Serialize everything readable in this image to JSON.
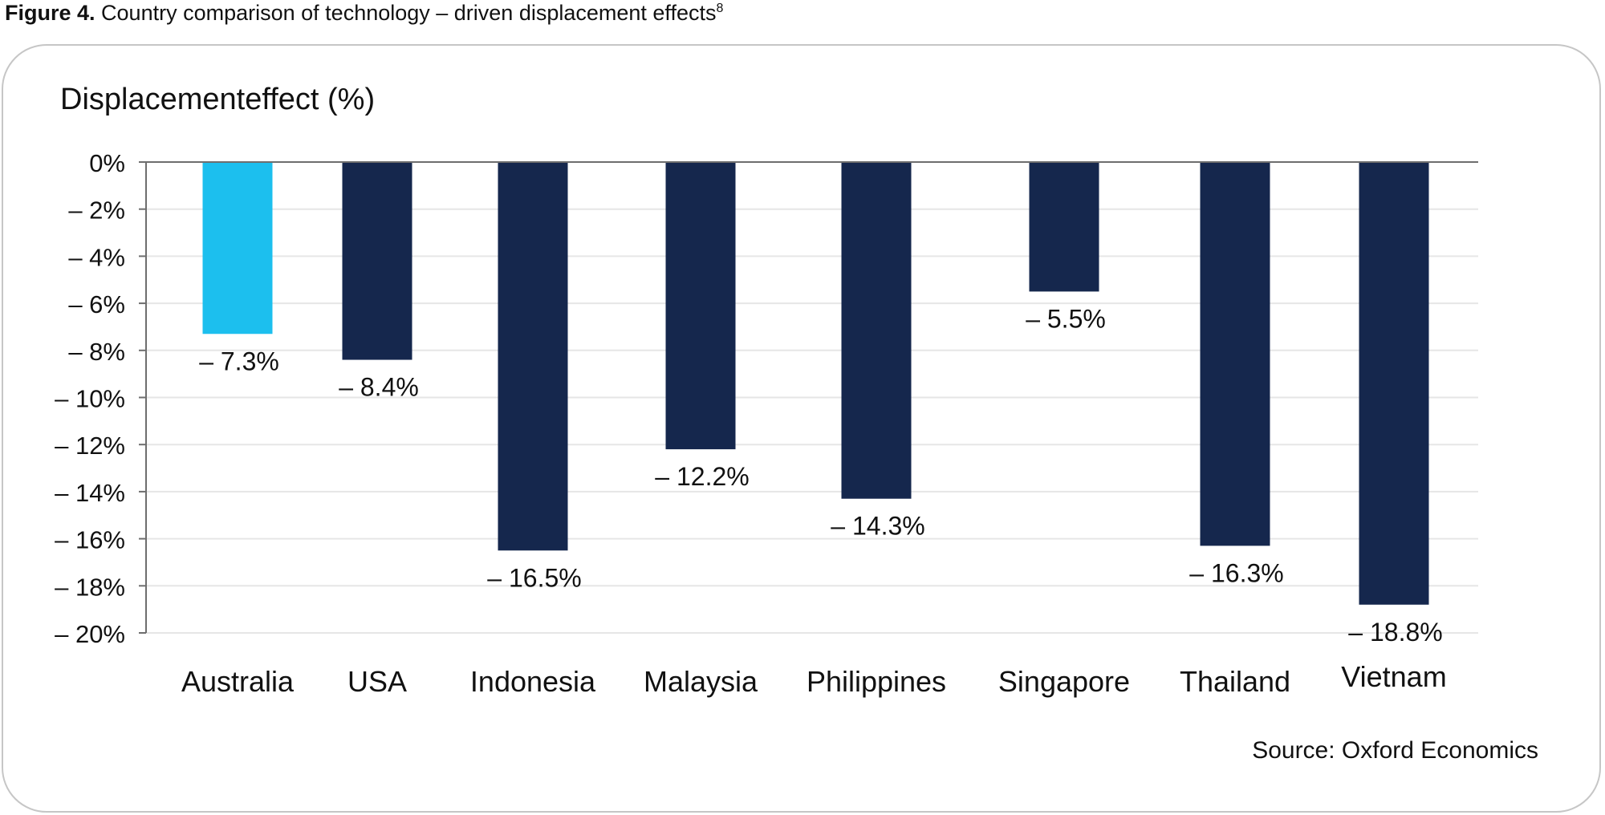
{
  "figure": {
    "label": "Figure 4.",
    "caption": "Country comparison of technology – driven displacement effects",
    "footnote": "8"
  },
  "source": "Source: Oxford Economics",
  "colors": {
    "highlight": "#1cbfee",
    "bar": "#15274d",
    "axis": "#6e6e6e",
    "grid": "#e6e6e6",
    "panel_border": "#c6c6c6"
  },
  "chart_data": {
    "type": "bar",
    "ylabel": "Displacementeffect (%)",
    "xlabel": "",
    "ylim": [
      -20,
      0
    ],
    "yticks": [
      0,
      -2,
      -4,
      -6,
      -8,
      -10,
      -12,
      -14,
      -16,
      -18,
      -20
    ],
    "ytick_labels": [
      "0%",
      "– 2%",
      "– 4%",
      "– 6%",
      "– 8%",
      "– 10%",
      "– 12%",
      "– 14%",
      "– 16%",
      "– 18%",
      "– 20%"
    ],
    "grid": true,
    "legend": "none",
    "categories": [
      "Australia",
      "USA",
      "Indonesia",
      "Malaysia",
      "Philippines",
      "Singapore",
      "Thailand",
      "Vietnam"
    ],
    "values": [
      -7.3,
      -8.4,
      -16.5,
      -12.2,
      -14.3,
      -5.5,
      -16.3,
      -18.8
    ],
    "value_labels": [
      "– 7.3%",
      "– 8.4%",
      "– 16.5%",
      "– 12.2%",
      "– 14.3%",
      "– 5.5%",
      "– 16.3%",
      "– 18.8%"
    ],
    "highlight_category": "Australia"
  }
}
